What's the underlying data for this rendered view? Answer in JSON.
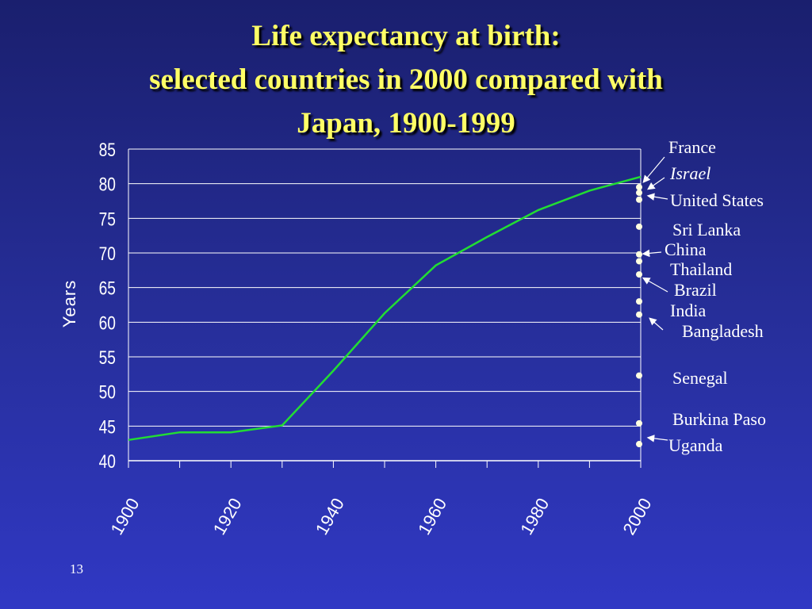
{
  "slide": {
    "title_lines": [
      "Life expectancy at birth:",
      "selected countries in 2000 compared with",
      "Japan, 1900-1999"
    ],
    "slide_number": "13"
  },
  "colors": {
    "title": "#ffff66",
    "line": "#22dd33",
    "axis_text": "#ffffff",
    "gridline": "#ffffff",
    "points": "#ffffe0"
  },
  "chart_data": {
    "type": "line",
    "ylabel": "Years",
    "xlim": [
      1900,
      2000
    ],
    "ylim": [
      40,
      85
    ],
    "grid": true,
    "x_ticks": [
      "1900",
      "1920",
      "1940",
      "1960",
      "1980",
      "2000"
    ],
    "y_ticks": [
      "85",
      "80",
      "75",
      "70",
      "65",
      "60",
      "55",
      "50",
      "45",
      "40"
    ],
    "series": [
      {
        "x": [
          1900,
          1910,
          1920,
          1930,
          1940,
          1950,
          1960,
          1970,
          1980,
          1990,
          2000
        ],
        "y": [
          43,
          44.1,
          44.1,
          45.1,
          53,
          61.3,
          68.2,
          72.3,
          76.2,
          79,
          81
        ]
      }
    ],
    "points_2000": [
      {
        "label": "France",
        "value": 79.5
      },
      {
        "label": "Israel",
        "value": 78.7
      },
      {
        "label": "United States",
        "value": 77.7
      },
      {
        "label": "Sri Lanka",
        "value": 73.8
      },
      {
        "label": "China",
        "value": 69.8
      },
      {
        "label": "Thailand",
        "value": 68.8
      },
      {
        "label": "Brazil",
        "value": 66.9
      },
      {
        "label": "India",
        "value": 63
      },
      {
        "label": "Bangladesh",
        "value": 61.1
      },
      {
        "label": "Senegal",
        "value": 52.3
      },
      {
        "label": "Burkina Paso",
        "value": 45.4
      },
      {
        "label": "Uganda",
        "value": 42.4
      }
    ]
  }
}
